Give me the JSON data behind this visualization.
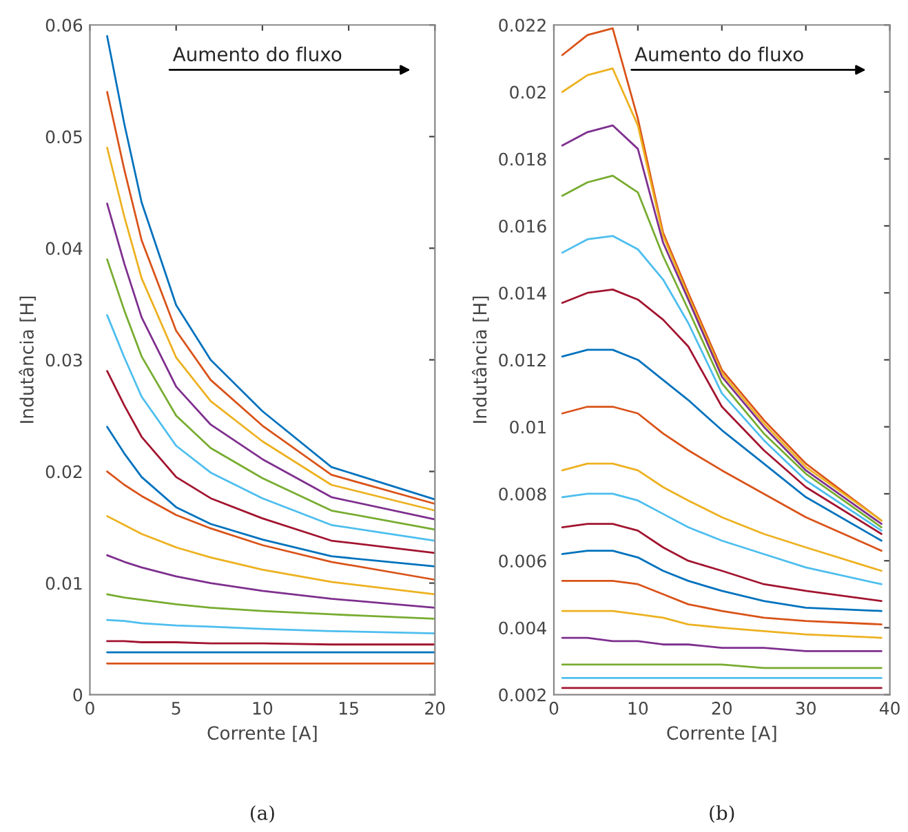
{
  "chart_data": [
    {
      "type": "line",
      "xlabel": "Corrente [A]",
      "ylabel": "Indutância [H]",
      "annotations": [
        "Aumento do fluxo",
        "(a)"
      ],
      "xlim": [
        0,
        20
      ],
      "xticks": [
        0,
        5,
        10,
        15,
        20
      ],
      "ylim": [
        0,
        0.06
      ],
      "yticks": [
        0,
        0.01,
        0.02,
        0.03,
        0.04,
        0.05,
        0.06
      ],
      "grid": false,
      "legend": false,
      "marker": "none",
      "line_style": "solid",
      "x": [
        1,
        2,
        3,
        5,
        7,
        10,
        14,
        20
      ],
      "series": [
        {
          "color": "#0072bd",
          "values": [
            0.059,
            0.0511,
            0.0441,
            0.0349,
            0.03,
            0.0254,
            0.0204,
            0.0175
          ]
        },
        {
          "color": "#d95319",
          "values": [
            0.054,
            0.047,
            0.0407,
            0.0326,
            0.0282,
            0.0241,
            0.0197,
            0.0171
          ]
        },
        {
          "color": "#edb120",
          "values": [
            0.049,
            0.0428,
            0.0373,
            0.0302,
            0.0263,
            0.0227,
            0.0188,
            0.0165
          ]
        },
        {
          "color": "#7e2f8e",
          "values": [
            0.044,
            0.0386,
            0.0338,
            0.0276,
            0.0242,
            0.0211,
            0.0177,
            0.0157
          ]
        },
        {
          "color": "#77ac30",
          "values": [
            0.039,
            0.0344,
            0.0303,
            0.025,
            0.0221,
            0.0194,
            0.0165,
            0.0148
          ]
        },
        {
          "color": "#4dbeee",
          "values": [
            0.034,
            0.0302,
            0.0267,
            0.0223,
            0.0199,
            0.0176,
            0.0152,
            0.0138
          ]
        },
        {
          "color": "#a2142f",
          "values": [
            0.029,
            0.0259,
            0.0231,
            0.0195,
            0.0176,
            0.0158,
            0.0138,
            0.0127
          ]
        },
        {
          "color": "#0072bd",
          "values": [
            0.024,
            0.0216,
            0.0195,
            0.0168,
            0.0153,
            0.0139,
            0.0124,
            0.0115
          ]
        },
        {
          "color": "#d95319",
          "values": [
            0.02,
            0.0188,
            0.0178,
            0.0161,
            0.0149,
            0.0134,
            0.0119,
            0.0103
          ]
        },
        {
          "color": "#edb120",
          "values": [
            0.016,
            0.0152,
            0.0144,
            0.0132,
            0.0123,
            0.0112,
            0.0101,
            0.009
          ]
        },
        {
          "color": "#7e2f8e",
          "values": [
            0.0125,
            0.0119,
            0.0114,
            0.0106,
            0.01,
            0.0093,
            0.0086,
            0.0078
          ]
        },
        {
          "color": "#77ac30",
          "values": [
            0.009,
            0.0087,
            0.0085,
            0.0081,
            0.0078,
            0.0075,
            0.0072,
            0.0068
          ]
        },
        {
          "color": "#4dbeee",
          "values": [
            0.0067,
            0.0066,
            0.0064,
            0.0062,
            0.0061,
            0.0059,
            0.0057,
            0.0055
          ]
        },
        {
          "color": "#a2142f",
          "values": [
            0.0048,
            0.0048,
            0.0047,
            0.0047,
            0.0046,
            0.0046,
            0.0045,
            0.0045
          ]
        },
        {
          "color": "#0072bd",
          "values": [
            0.0038,
            0.0038,
            0.0038,
            0.0038,
            0.0038,
            0.0038,
            0.0038,
            0.0038
          ]
        },
        {
          "color": "#d95319",
          "values": [
            0.0028,
            0.0028,
            0.0028,
            0.0028,
            0.0028,
            0.0028,
            0.0028,
            0.0028
          ]
        }
      ]
    },
    {
      "type": "line",
      "xlabel": "Corrente [A]",
      "ylabel": "Indutância [H]",
      "annotations": [
        "Aumento do fluxo",
        "(b)"
      ],
      "xlim": [
        0,
        40
      ],
      "xticks": [
        0,
        10,
        20,
        30,
        40
      ],
      "ylim": [
        0.002,
        0.022
      ],
      "yticks": [
        0.002,
        0.004,
        0.006,
        0.008,
        0.01,
        0.012,
        0.014,
        0.016,
        0.018,
        0.02,
        0.022
      ],
      "grid": false,
      "legend": false,
      "marker": "none",
      "line_style": "solid",
      "x": [
        1,
        4,
        7,
        10,
        13,
        16,
        20,
        25,
        30,
        39
      ],
      "series": [
        {
          "color": "#d95319",
          "values": [
            0.0211,
            0.0217,
            0.0219,
            0.0192,
            0.0158,
            0.014,
            0.0117,
            0.0102,
            0.0089,
            0.0072
          ]
        },
        {
          "color": "#edb120",
          "values": [
            0.02,
            0.0205,
            0.0207,
            0.019,
            0.0157,
            0.0139,
            0.0116,
            0.0101,
            0.0088,
            0.0072
          ]
        },
        {
          "color": "#7e2f8e",
          "values": [
            0.0184,
            0.0188,
            0.019,
            0.0183,
            0.0155,
            0.0138,
            0.0115,
            0.01,
            0.0087,
            0.0071
          ]
        },
        {
          "color": "#77ac30",
          "values": [
            0.0169,
            0.0173,
            0.0175,
            0.017,
            0.0151,
            0.0135,
            0.0113,
            0.0098,
            0.0086,
            0.007
          ]
        },
        {
          "color": "#4dbeee",
          "values": [
            0.0152,
            0.0156,
            0.0157,
            0.0153,
            0.0144,
            0.0131,
            0.011,
            0.0096,
            0.0084,
            0.0069
          ]
        },
        {
          "color": "#a2142f",
          "values": [
            0.0137,
            0.014,
            0.0141,
            0.0138,
            0.0132,
            0.0124,
            0.0106,
            0.0093,
            0.0082,
            0.0068
          ]
        },
        {
          "color": "#0072bd",
          "values": [
            0.0121,
            0.0123,
            0.0123,
            0.012,
            0.0114,
            0.0108,
            0.0099,
            0.0089,
            0.0079,
            0.0066
          ]
        },
        {
          "color": "#d95319",
          "values": [
            0.0104,
            0.0106,
            0.0106,
            0.0104,
            0.0098,
            0.0093,
            0.0087,
            0.008,
            0.0073,
            0.0063
          ]
        },
        {
          "color": "#edb120",
          "values": [
            0.0087,
            0.0089,
            0.0089,
            0.0087,
            0.0082,
            0.0078,
            0.0073,
            0.0068,
            0.0064,
            0.0057
          ]
        },
        {
          "color": "#4dbeee",
          "values": [
            0.0079,
            0.008,
            0.008,
            0.0078,
            0.0074,
            0.007,
            0.0066,
            0.0062,
            0.0058,
            0.0053
          ]
        },
        {
          "color": "#a2142f",
          "values": [
            0.007,
            0.0071,
            0.0071,
            0.0069,
            0.0064,
            0.006,
            0.0057,
            0.0053,
            0.0051,
            0.0048
          ]
        },
        {
          "color": "#0072bd",
          "values": [
            0.0062,
            0.0063,
            0.0063,
            0.0061,
            0.0057,
            0.0054,
            0.0051,
            0.0048,
            0.0046,
            0.0045
          ]
        },
        {
          "color": "#d95319",
          "values": [
            0.0054,
            0.0054,
            0.0054,
            0.0053,
            0.005,
            0.0047,
            0.0045,
            0.0043,
            0.0042,
            0.0041
          ]
        },
        {
          "color": "#edb120",
          "values": [
            0.0045,
            0.0045,
            0.0045,
            0.0044,
            0.0043,
            0.0041,
            0.004,
            0.0039,
            0.0038,
            0.0037
          ]
        },
        {
          "color": "#7e2f8e",
          "values": [
            0.0037,
            0.0037,
            0.0036,
            0.0036,
            0.0035,
            0.0035,
            0.0034,
            0.0034,
            0.0033,
            0.0033
          ]
        },
        {
          "color": "#77ac30",
          "values": [
            0.0029,
            0.0029,
            0.0029,
            0.0029,
            0.0029,
            0.0029,
            0.0029,
            0.0028,
            0.0028,
            0.0028
          ]
        },
        {
          "color": "#4dbeee",
          "values": [
            0.0025,
            0.0025,
            0.0025,
            0.0025,
            0.0025,
            0.0025,
            0.0025,
            0.0025,
            0.0025,
            0.0025
          ]
        },
        {
          "color": "#a2142f",
          "values": [
            0.0022,
            0.0022,
            0.0022,
            0.0022,
            0.0022,
            0.0022,
            0.0022,
            0.0022,
            0.0022,
            0.0022
          ]
        }
      ]
    }
  ]
}
